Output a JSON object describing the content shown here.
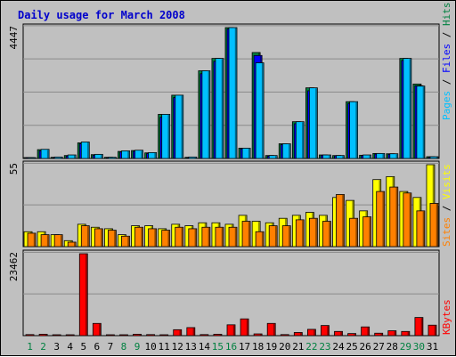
{
  "title": "Daily usage for March 2008",
  "colors": {
    "background": "#c0c0c0",
    "panel": "#c0c0c0",
    "grid": "#8a8a8a",
    "title": "#0000cc",
    "day_label": "#000000",
    "weekend_label": "#008040",
    "axis": "#000000"
  },
  "legend_labels": {
    "pages": "Pages",
    "files": "Files",
    "hits": "Hits",
    "sites": "Sites",
    "visits": "Visits",
    "kbytes": "KBytes",
    "slash": "/"
  },
  "legend_colors": {
    "pages": "#00c0ff",
    "files": "#0000ff",
    "hits": "#008040",
    "sites": "#ff8000",
    "visits": "#ffff00",
    "kbytes": "#ff0000",
    "slash": "#000000"
  },
  "chart_data": {
    "type": "bar",
    "categories": [
      "1",
      "2",
      "3",
      "4",
      "5",
      "6",
      "7",
      "8",
      "9",
      "10",
      "11",
      "12",
      "13",
      "14",
      "15",
      "16",
      "17",
      "18",
      "19",
      "20",
      "21",
      "22",
      "23",
      "24",
      "25",
      "26",
      "27",
      "28",
      "29",
      "30",
      "31"
    ],
    "weekend_days": [
      "1",
      "2",
      "8",
      "9",
      "15",
      "16",
      "22",
      "23",
      "29",
      "30"
    ],
    "panels": [
      {
        "name": "usage",
        "ymax": 4447,
        "ymax_label": "4447",
        "series": [
          {
            "name": "Hits",
            "color": "#008040",
            "values": [
              30,
              300,
              40,
              100,
              530,
              130,
              40,
              240,
              270,
              190,
              1500,
              2150,
              40,
              2980,
              3400,
              4447,
              350,
              3600,
              100,
              500,
              1250,
              2400,
              120,
              100,
              1930,
              110,
              170,
              160,
              3400,
              2530,
              60
            ]
          },
          {
            "name": "Files",
            "color": "#0000ff",
            "values": [
              20,
              260,
              30,
              80,
              500,
              110,
              30,
              220,
              250,
              170,
              1400,
              2070,
              30,
              2880,
              3300,
              4400,
              330,
              3500,
              80,
              470,
              1180,
              2300,
              110,
              90,
              1870,
              100,
              150,
              140,
              3330,
              2470,
              40
            ]
          },
          {
            "name": "Pages",
            "color": "#00c0ff",
            "values": [
              30,
              310,
              50,
              120,
              560,
              140,
              40,
              260,
              280,
              200,
              1500,
              2150,
              50,
              2980,
              3400,
              4447,
              350,
              3250,
              100,
              500,
              1250,
              2400,
              120,
              100,
              1930,
              120,
              170,
              160,
              3400,
              2460,
              60
            ]
          }
        ]
      },
      {
        "name": "visitors",
        "ymax": 55,
        "ymax_label": "55",
        "series": [
          {
            "name": "Visits",
            "color": "#ffff00",
            "values": [
              10,
              10,
              8,
              4,
              15,
              13,
              12,
              8,
              14,
              14,
              12,
              15,
              14,
              16,
              16,
              15,
              21,
              17,
              16,
              19,
              21,
              23,
              21,
              33,
              31,
              24,
              45,
              47,
              37,
              33,
              55
            ]
          },
          {
            "name": "Sites",
            "color": "#ff8000",
            "values": [
              9,
              8,
              8,
              3,
              14,
              12,
              11,
              7,
              13,
              12,
              11,
              13,
              12,
              13,
              13,
              13,
              17,
              10,
              14,
              14,
              18,
              19,
              17,
              35,
              19,
              20,
              37,
              40,
              36,
              24,
              29
            ]
          }
        ]
      },
      {
        "name": "volume",
        "ymax": 23462,
        "ymax_label": "23462",
        "series": [
          {
            "name": "KBytes",
            "color": "#ff0000",
            "values": [
              300,
              400,
              200,
              100,
              23462,
              3500,
              200,
              200,
              400,
              300,
              200,
              1700,
              2300,
              300,
              400,
              3100,
              4800,
              500,
              3500,
              300,
              900,
              1800,
              2900,
              1200,
              600,
              2500,
              700,
              1400,
              1200,
              5200,
              3000
            ]
          }
        ]
      }
    ]
  }
}
